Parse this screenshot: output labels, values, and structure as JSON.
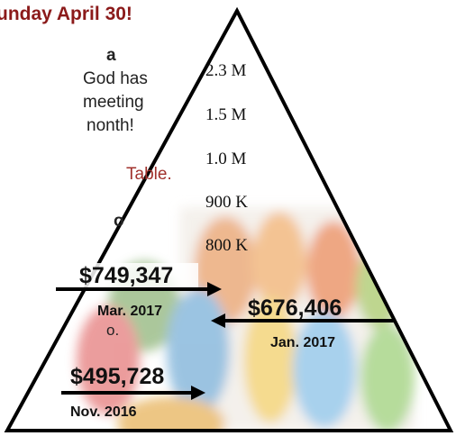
{
  "header": {
    "title": "unday April 30!"
  },
  "body": {
    "lines": [
      "a",
      "God has",
      "meeting",
      "nonth!",
      "Table.",
      "o",
      "o."
    ]
  },
  "pyramid": {
    "levels": [
      "2.3 M",
      "1.5 M",
      "1.0 M",
      "900 K",
      "800 K"
    ],
    "callouts": [
      {
        "amount": "$749,347",
        "date": "Mar. 2017"
      },
      {
        "amount": "$676,406",
        "date": "Jan. 2017"
      },
      {
        "amount": "$495,728",
        "date": "Nov. 2016"
      }
    ]
  }
}
